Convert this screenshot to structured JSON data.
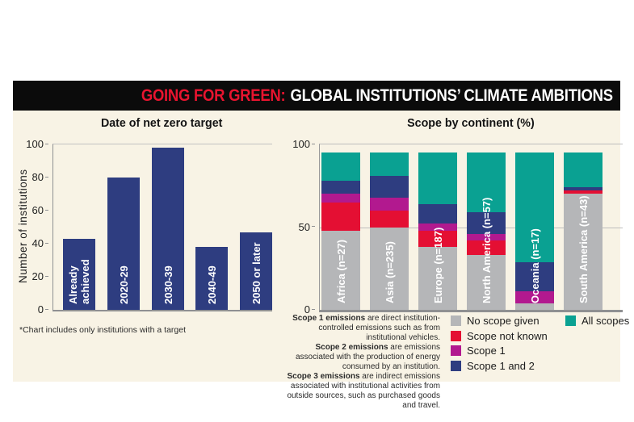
{
  "header": {
    "highlight": "GOING FOR GREEN:",
    "title": "GLOBAL INSTITUTIONS’ CLIMATE AMBITIONS"
  },
  "colors": {
    "background_cream": "#f8f3e5",
    "header_black": "#0b0b0b",
    "header_red": "#e8142f",
    "navy": "#2e3d80",
    "gray": "#b5b6b8",
    "red": "#e40f33",
    "magenta": "#b2198f",
    "teal": "#0aa192"
  },
  "chart_data": [
    {
      "type": "bar",
      "title": "Date of net zero target",
      "ylabel": "Number of institutions",
      "xlabel": "",
      "categories": [
        "Already achieved",
        "2020-29",
        "2030-39",
        "2040-49",
        "2050 or later"
      ],
      "category_lines": [
        [
          "Already",
          "achieved"
        ],
        [
          "2020-29"
        ],
        [
          "2030-39"
        ],
        [
          "2040-49"
        ],
        [
          "2050 or later"
        ]
      ],
      "values": [
        43,
        80,
        98,
        38,
        47
      ],
      "ylim": [
        0,
        100
      ],
      "yticks": [
        0,
        20,
        40,
        60,
        80,
        100
      ],
      "grid": "top line at 100 only",
      "bar_color": "#2e3d80",
      "footnote": "*Chart includes only institutions with a target"
    },
    {
      "type": "bar",
      "subtype": "stacked",
      "title": "Scope by continent (%)",
      "ylabel": "",
      "xlabel": "",
      "categories": [
        "Africa (n=27)",
        "Asia (n=235)",
        "Europe (n=187)",
        "North America (n=57)",
        "Oceania (n=17)",
        "South America (n=43)"
      ],
      "ylim": [
        0,
        100
      ],
      "yticks": [
        0,
        50,
        100
      ],
      "grid": "lines at 50 and 100, baseline at 0",
      "stack_total_shown": 95,
      "series": [
        {
          "name": "No scope given",
          "color": "#b5b6b8",
          "values": [
            48,
            50,
            38,
            33,
            4,
            70
          ]
        },
        {
          "name": "Scope not known",
          "color": "#e40f33",
          "values": [
            17,
            10,
            10,
            9,
            0,
            2
          ]
        },
        {
          "name": "Scope 1",
          "color": "#b2198f",
          "values": [
            5,
            8,
            4,
            4,
            7,
            0
          ]
        },
        {
          "name": "Scope 1 and 2",
          "color": "#2e3d80",
          "values": [
            8,
            13,
            12,
            13,
            18,
            2
          ]
        },
        {
          "name": "All scopes",
          "color": "#0aa192",
          "values": [
            17,
            14,
            31,
            36,
            66,
            21
          ]
        }
      ],
      "legend_position": "below chart, two columns"
    }
  ],
  "legend": {
    "items": [
      {
        "label": "No scope given",
        "color": "#b5b6b8",
        "column": 1
      },
      {
        "label": "Scope not known",
        "color": "#e40f33",
        "column": 1
      },
      {
        "label": "Scope 1",
        "color": "#b2198f",
        "column": 1
      },
      {
        "label": "Scope 1 and 2",
        "color": "#2e3d80",
        "column": 1
      },
      {
        "label": "All scopes",
        "color": "#0aa192",
        "column": 2
      }
    ]
  },
  "definitions": [
    {
      "label": "Scope 1 emissions",
      "text": " are direct institution-controlled emissions such as from institutional vehicles."
    },
    {
      "label": "Scope 2 emissions",
      "text": " are emissions associated with the production of energy consumed by an institution."
    },
    {
      "label": "Scope 3 emissions",
      "text": " are indirect emissions associated with institutional activities from outside sources, such as purchased goods and travel."
    }
  ]
}
